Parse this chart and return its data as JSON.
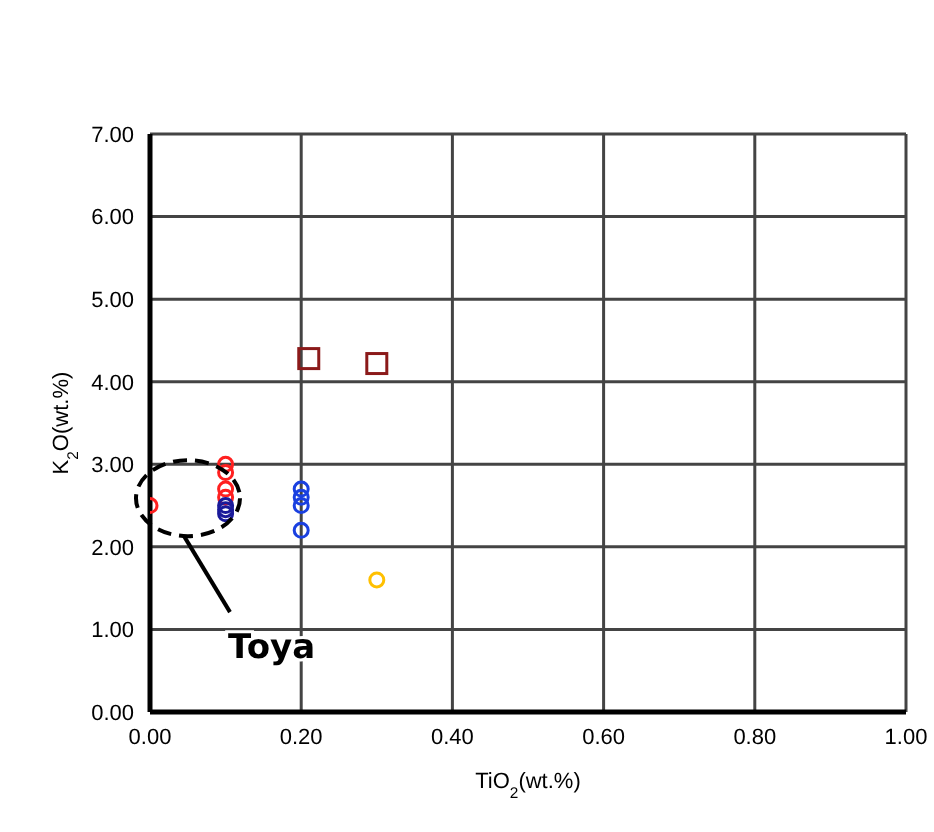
{
  "chart_data": {
    "type": "scatter",
    "xlabel": "TiO$_{2}$(wt.%)",
    "ylabel": "K$_{2}$O(wt.%)",
    "xlim": [
      0,
      1
    ],
    "xticks": [
      {
        "value": 0,
        "label": "0.00"
      },
      {
        "value": 0.2,
        "label": "0.20"
      },
      {
        "value": 0.4,
        "label": "0.40"
      },
      {
        "value": 0.6,
        "label": "0.60"
      },
      {
        "value": 0.8,
        "label": "0.80"
      },
      {
        "value": 1,
        "label": "1.00"
      }
    ],
    "ylim": [
      0,
      7
    ],
    "yticks": [
      {
        "value": 0,
        "label": "0.00"
      },
      {
        "value": 1,
        "label": "1.00"
      },
      {
        "value": 2,
        "label": "2.00"
      },
      {
        "value": 3,
        "label": "3.00"
      },
      {
        "value": 4,
        "label": "4.00"
      },
      {
        "value": 5,
        "label": "5.00"
      },
      {
        "value": 6,
        "label": "6.00"
      },
      {
        "value": 7,
        "label": "7.00"
      }
    ],
    "grid": true,
    "series": [
      {
        "color": "#ff2020",
        "marker": "circle",
        "x": [
          0,
          0.1,
          0.1,
          0.1,
          0.1
        ],
        "values": [
          2.5,
          3.0,
          2.9,
          2.7,
          2.6
        ]
      },
      {
        "color": "#1a1a9a",
        "marker": "circle",
        "x": [
          0.1,
          0.1,
          0.1
        ],
        "values": [
          2.5,
          2.45,
          2.4
        ]
      },
      {
        "color": "#1a40e0",
        "marker": "circle",
        "x": [
          0.2,
          0.2,
          0.2,
          0.2
        ],
        "values": [
          2.7,
          2.6,
          2.5,
          2.2
        ]
      },
      {
        "color": "#8b1a1a",
        "marker": "square",
        "x": [
          0.21,
          0.3
        ],
        "values": [
          4.28,
          4.22
        ]
      },
      {
        "color": "#ffc000",
        "marker": "circle",
        "x": [
          0.3
        ],
        "values": [
          1.6
        ]
      }
    ],
    "annotations": [
      "Toya"
    ]
  }
}
